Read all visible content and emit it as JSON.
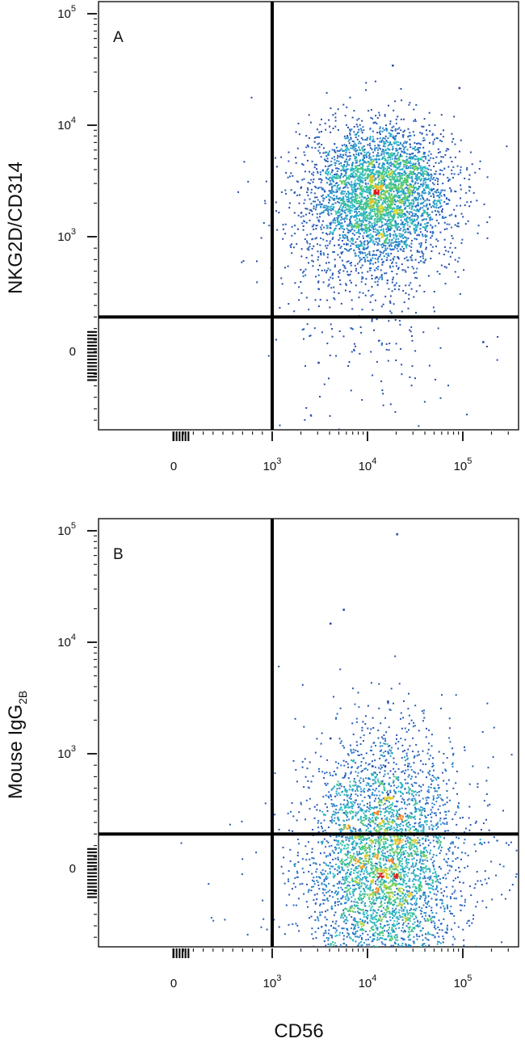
{
  "figure": {
    "xlabel": "CD56"
  },
  "chart_data": [
    {
      "type": "scatter",
      "panel_label": "A",
      "ylabel": "NKG2D/CD314",
      "ylabel_sub": "",
      "xlabel": "CD56",
      "x_scale": "biexponential",
      "y_scale": "biexponential",
      "x_ticks": [
        "0",
        "10^3",
        "10^4",
        "10^5"
      ],
      "y_ticks": [
        "0",
        "10^3",
        "10^4",
        "10^5"
      ],
      "quadrant_gate": {
        "x": 1000,
        "y": 300
      },
      "density_clusters": [
        {
          "center": {
            "x": 14000,
            "y": 2600
          },
          "spread_decades": {
            "x": 0.35,
            "y": 0.3
          },
          "events": 3200
        },
        {
          "center": {
            "x": 9000,
            "y": 1200
          },
          "spread_decades": {
            "x": 0.45,
            "y": 0.35
          },
          "events": 800
        },
        {
          "center": {
            "x": 12000,
            "y": 120
          },
          "spread_decades": {
            "x": 0.5,
            "y": 0.5
          },
          "events": 140
        }
      ],
      "outliers": [
        {
          "x": 18000,
          "y": 35000
        },
        {
          "x": 90000,
          "y": 22000
        },
        {
          "x": 160000,
          "y": 90
        },
        {
          "x": 3000,
          "y": -90
        }
      ]
    },
    {
      "type": "scatter",
      "panel_label": "B",
      "ylabel": "Mouse IgG",
      "ylabel_sub": "2B",
      "xlabel": "CD56",
      "x_scale": "biexponential",
      "y_scale": "biexponential",
      "x_ticks": [
        "0",
        "10^3",
        "10^4",
        "10^5"
      ],
      "y_ticks": [
        "0",
        "10^3",
        "10^4",
        "10^5"
      ],
      "quadrant_gate": {
        "x": 1000,
        "y": 300
      },
      "density_clusters": [
        {
          "center": {
            "x": 14000,
            "y": 40
          },
          "spread_decades": {
            "x": 0.35,
            "y": 0.55
          },
          "events": 3200
        },
        {
          "center": {
            "x": 14000,
            "y": 40
          },
          "spread_decades": {
            "x": 0.6,
            "y": 0.55
          },
          "events": 1000
        }
      ],
      "outliers": [
        {
          "x": 20000,
          "y": 95000
        },
        {
          "x": 5500,
          "y": 20000
        },
        {
          "x": 4000,
          "y": 15000
        },
        {
          "x": 16000,
          "y": 3000
        },
        {
          "x": 4000,
          "y": 1400
        },
        {
          "x": 11000,
          "y": 900
        },
        {
          "x": 15000,
          "y": 900
        },
        {
          "x": 26000,
          "y": 900
        },
        {
          "x": 16000,
          "y": 650
        }
      ]
    }
  ]
}
